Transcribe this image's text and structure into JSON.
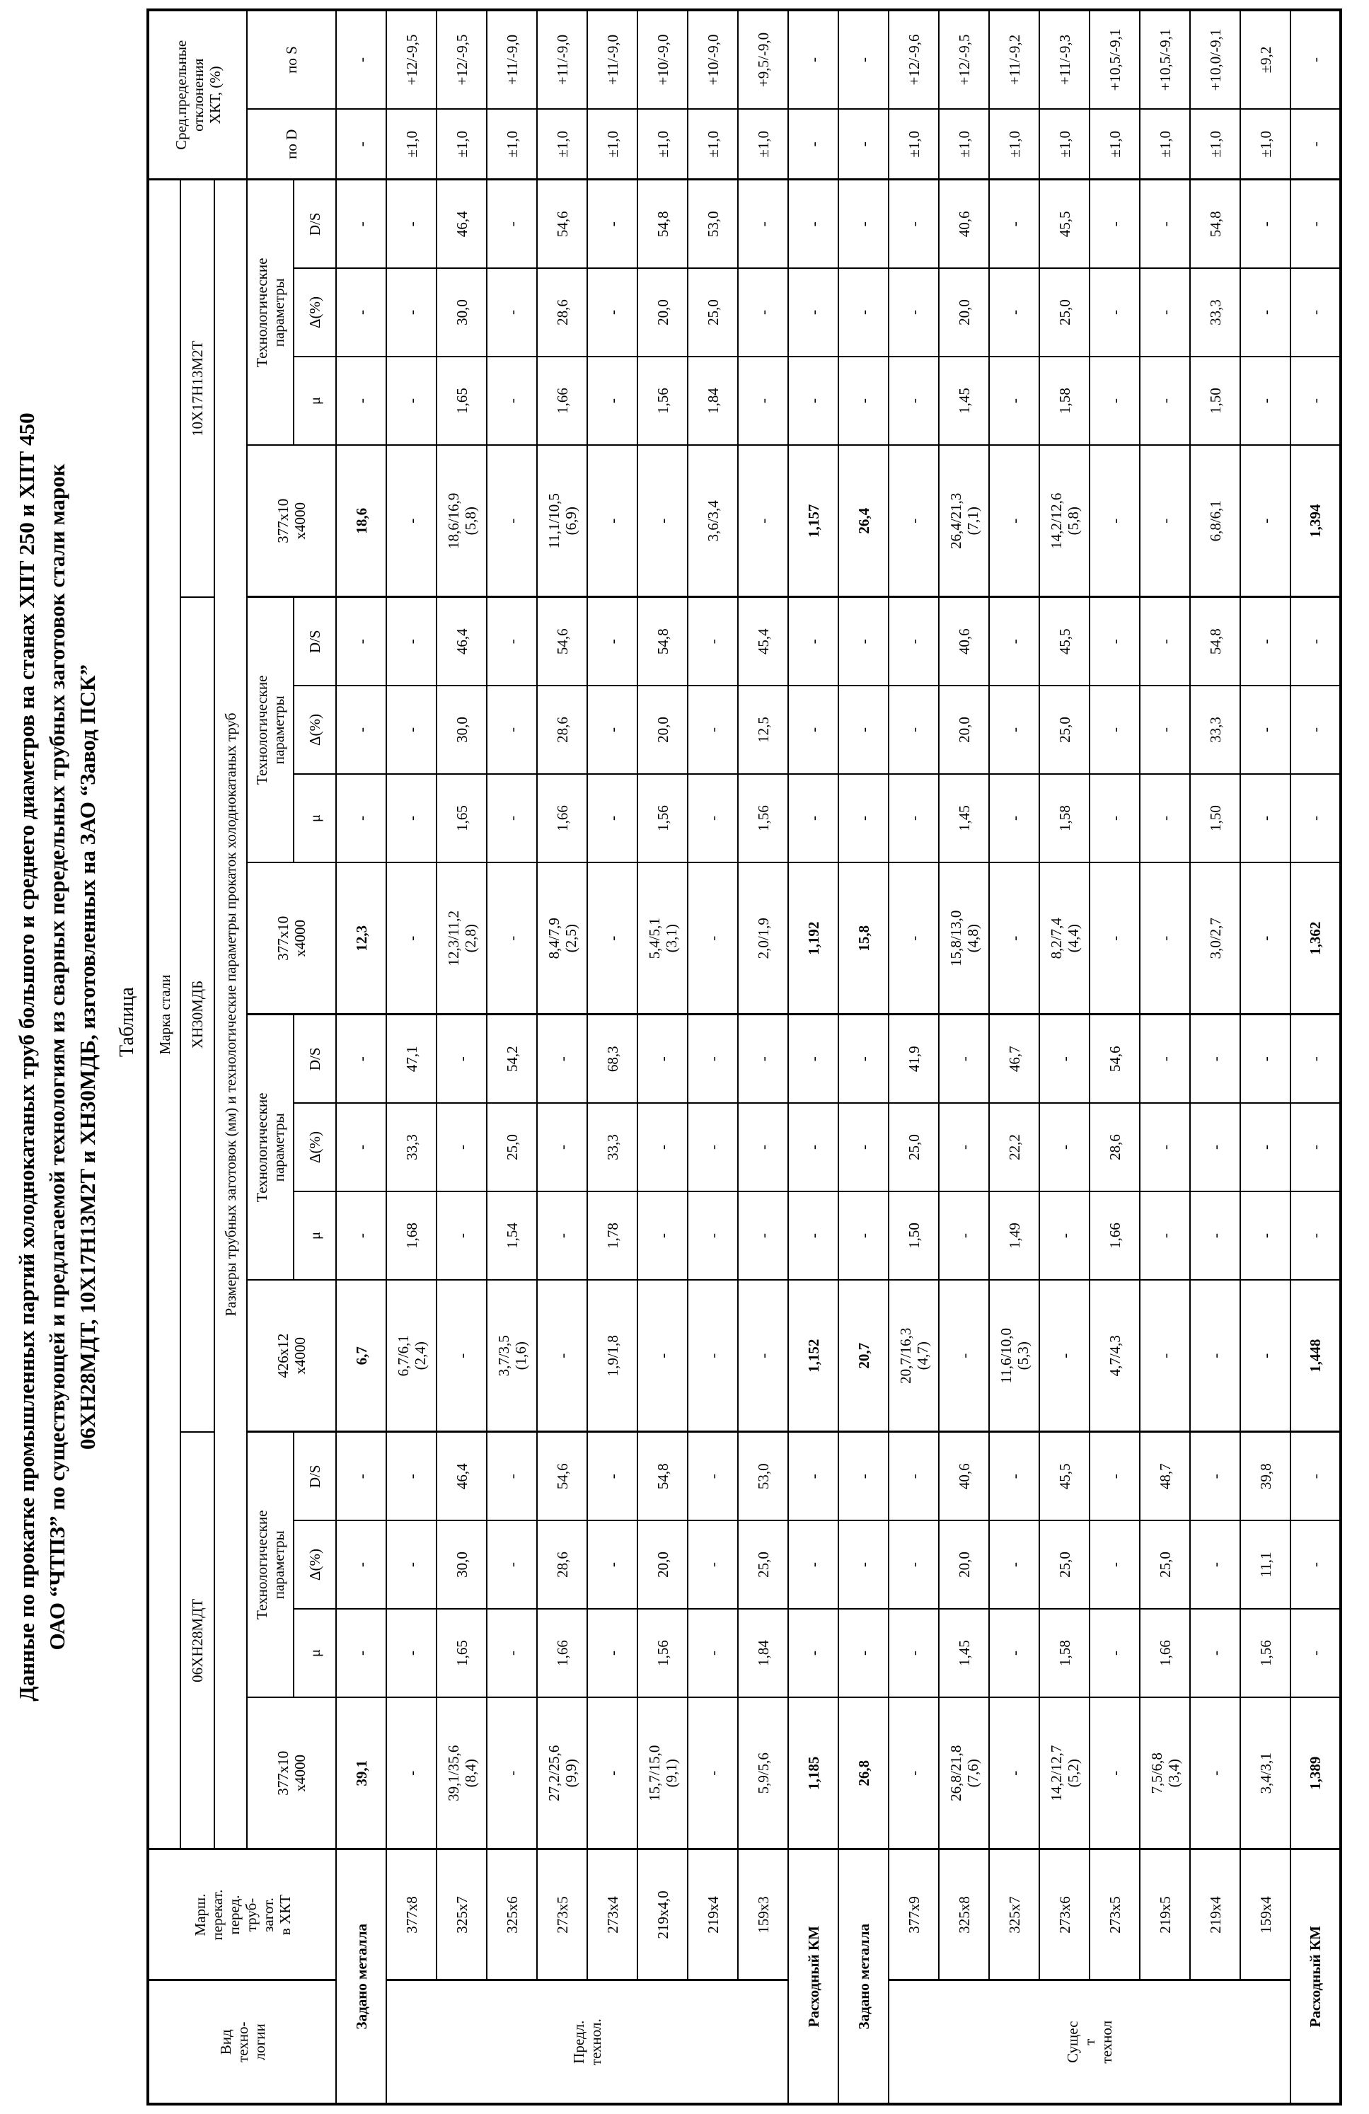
{
  "title_lines": [
    "Данные по прокатке промышленных партий холоднокатаных труб большого и среднего диаметров на станах ХПТ 250 и ХПТ 450",
    "ОАО “ЧТПЗ” по существующей и предлагаемой технологиям из сварных передельных трубных заготовок стали марок",
    "06ХН28МДТ, 10Х17Н13М2Т и ХН30МДБ, изготовленных на ЗАО “Завод ПСК”"
  ],
  "table_label": "Таблица",
  "table": {
    "vid_label": "Вид\nтехно-\nлогии",
    "marsh_label": "Марш.\nперекат.\nперед.\nтруб-\nзагот.\nв ХКТ",
    "marka_stali": "Марка стали",
    "razmery": "Размеры трубных заготовок (мм) и технологические параметры прокаток холоднокатаных труб",
    "otkloneniya": "Сред.предельные\nотклонения\nХКТ, (%)",
    "po_d": "по D",
    "po_s": "по S",
    "tech_params": "Технологические\nпараметры",
    "mu": "μ",
    "delta": "Δ(%)",
    "ds": "D/S",
    "steel_spans": [
      {
        "name": "06ХН28МДТ",
        "cols": 4
      },
      {
        "name": "ХН30МДБ",
        "cols": 8
      },
      {
        "name": "10Х17Н13М2Т",
        "cols": 4
      }
    ],
    "size_headers": [
      "377х10\nх4000",
      "426х12\nх4000",
      "377х10\nх4000",
      "377х10\nх4000"
    ],
    "vid_spans": [
      {
        "text": "Предл.\nтехнол.",
        "from": 1,
        "to": 8
      },
      {
        "text": "Сущес\nт\nтехнол",
        "from": 11,
        "to": 18
      }
    ],
    "rows": [
      {
        "label": "Задано металла",
        "bold": true,
        "g": [
          [
            "39,1",
            "-",
            "-",
            "-"
          ],
          [
            "6,7",
            "-",
            "-",
            "-"
          ],
          [
            "12,3",
            "-",
            "-",
            "-"
          ],
          [
            "18,6",
            "-",
            "-",
            "-"
          ]
        ],
        "d": "-",
        "s": "-"
      },
      {
        "m": "377х8",
        "g": [
          [
            "-",
            "-",
            "-",
            "-"
          ],
          [
            "6,7/6,1\n(2,4)",
            "1,68",
            "33,3",
            "47,1"
          ],
          [
            "-",
            "-",
            "-",
            "-"
          ],
          [
            "-",
            "-",
            "-",
            "-"
          ]
        ],
        "d": "±1,0",
        "s": "+12/-9,5"
      },
      {
        "m": "325х7",
        "g": [
          [
            "39,1/35,6\n(8,4)",
            "1,65",
            "30,0",
            "46,4"
          ],
          [
            "-",
            "-",
            "-",
            "-"
          ],
          [
            "12,3/11,2\n(2,8)",
            "1,65",
            "30,0",
            "46,4"
          ],
          [
            "18,6/16,9\n(5,8)",
            "1,65",
            "30,0",
            "46,4"
          ]
        ],
        "d": "±1,0",
        "s": "+12/-9,5"
      },
      {
        "m": "325х6",
        "g": [
          [
            "-",
            "-",
            "-",
            "-"
          ],
          [
            "3,7/3,5\n(1,6)",
            "1,54",
            "25,0",
            "54,2"
          ],
          [
            "-",
            "-",
            "-",
            "-"
          ],
          [
            "-",
            "-",
            "-",
            "-"
          ]
        ],
        "d": "±1,0",
        "s": "+11/-9,0"
      },
      {
        "m": "273х5",
        "g": [
          [
            "27,2/25,6\n(9,9)",
            "1,66",
            "28,6",
            "54,6"
          ],
          [
            "-",
            "-",
            "-",
            "-"
          ],
          [
            "8,4/7,9\n(2,5)",
            "1,66",
            "28,6",
            "54,6"
          ],
          [
            "11,1/10,5\n(6,9)",
            "1,66",
            "28,6",
            "54,6"
          ]
        ],
        "d": "±1,0",
        "s": "+11/-9,0"
      },
      {
        "m": "273х4",
        "g": [
          [
            "-",
            "-",
            "-",
            "-"
          ],
          [
            "1,9/1,8",
            "1,78",
            "33,3",
            "68,3"
          ],
          [
            "-",
            "-",
            "-",
            "-"
          ],
          [
            "-",
            "-",
            "-",
            "-"
          ]
        ],
        "d": "±1,0",
        "s": "+11/-9,0"
      },
      {
        "m": "219х4,0",
        "g": [
          [
            "15,7/15,0\n(9,1)",
            "1,56",
            "20,0",
            "54,8"
          ],
          [
            "-",
            "-",
            "-",
            "-"
          ],
          [
            "5,4/5,1\n(3,1)",
            "1,56",
            "20,0",
            "54,8"
          ],
          [
            "-",
            "1,56",
            "20,0",
            "54,8"
          ]
        ],
        "d": "±1,0",
        "s": "+10/-9,0"
      },
      {
        "m": "219х4",
        "g": [
          [
            "-",
            "-",
            "-",
            "-"
          ],
          [
            "-",
            "-",
            "-",
            "-"
          ],
          [
            "-",
            "-",
            "-",
            "-"
          ],
          [
            "3,6/3,4",
            "1,84",
            "25,0",
            "53,0"
          ]
        ],
        "d": "±1,0",
        "s": "+10/-9,0"
      },
      {
        "m": "159х3",
        "g": [
          [
            "5,9/5,6",
            "1,84",
            "25,0",
            "53,0"
          ],
          [
            "-",
            "-",
            "-",
            "-"
          ],
          [
            "2,0/1,9",
            "1,56",
            "12,5",
            "45,4"
          ],
          [
            "-",
            "-",
            "-",
            "-"
          ]
        ],
        "d": "±1,0",
        "s": "+9,5/-9,0"
      },
      {
        "label": "Расходный КМ",
        "bold": true,
        "g": [
          [
            "1,185",
            "-",
            "-",
            "-"
          ],
          [
            "1,152",
            "-",
            "-",
            "-"
          ],
          [
            "1,192",
            "-",
            "-",
            "-"
          ],
          [
            "1,157",
            "-",
            "-",
            "-"
          ]
        ],
        "d": "-",
        "s": "-"
      },
      {
        "label": "Задано металла",
        "bold": true,
        "g": [
          [
            "26,8",
            "-",
            "-",
            "-"
          ],
          [
            "20,7",
            "-",
            "-",
            "-"
          ],
          [
            "15,8",
            "-",
            "-",
            "-"
          ],
          [
            "26,4",
            "-",
            "-",
            "-"
          ]
        ],
        "d": "-",
        "s": "-"
      },
      {
        "m": "377х9",
        "g": [
          [
            "-",
            "-",
            "-",
            "-"
          ],
          [
            "20,7/16,3\n(4,7)",
            "1,50",
            "25,0",
            "41,9"
          ],
          [
            "-",
            "-",
            "-",
            "-"
          ],
          [
            "-",
            "-",
            "-",
            "-"
          ]
        ],
        "d": "±1,0",
        "s": "+12/-9,6"
      },
      {
        "m": "325х8",
        "g": [
          [
            "26,8/21,8\n(7,6)",
            "1,45",
            "20,0",
            "40,6"
          ],
          [
            "-",
            "-",
            "-",
            "-"
          ],
          [
            "15,8/13,0\n(4,8)",
            "1,45",
            "20,0",
            "40,6"
          ],
          [
            "26,4/21,3\n(7,1)",
            "1,45",
            "20,0",
            "40,6"
          ]
        ],
        "d": "±1,0",
        "s": "+12/-9,5"
      },
      {
        "m": "325х7",
        "g": [
          [
            "-",
            "-",
            "-",
            "-"
          ],
          [
            "11,6/10,0\n(5,3)",
            "1,49",
            "22,2",
            "46,7"
          ],
          [
            "-",
            "-",
            "-",
            "-"
          ],
          [
            "-",
            "-",
            "-",
            "-"
          ]
        ],
        "d": "±1,0",
        "s": "+11/-9,2"
      },
      {
        "m": "273х6",
        "g": [
          [
            "14,2/12,7\n(5,2)",
            "1,58",
            "25,0",
            "45,5"
          ],
          [
            "-",
            "-",
            "-",
            "-"
          ],
          [
            "8,2/7,4\n(4,4)",
            "1,58",
            "25,0",
            "45,5"
          ],
          [
            "14,2/12,6\n(5,8)",
            "1,58",
            "25,0",
            "45,5"
          ]
        ],
        "d": "±1,0",
        "s": "+11/-9,3"
      },
      {
        "m": "273х5",
        "g": [
          [
            "-",
            "-",
            "-",
            "-"
          ],
          [
            "4,7/4,3",
            "1,66",
            "28,6",
            "54,6"
          ],
          [
            "-",
            "-",
            "-",
            "-"
          ],
          [
            "-",
            "-",
            "-",
            "-"
          ]
        ],
        "d": "±1,0",
        "s": "+10,5/-9,1"
      },
      {
        "m": "219х5",
        "g": [
          [
            "7,5/6,8\n(3,4)",
            "1,66",
            "25,0",
            "48,7"
          ],
          [
            "-",
            "-",
            "-",
            "-"
          ],
          [
            "-",
            "-",
            "-",
            "-"
          ],
          [
            "-",
            "-",
            "-",
            "-"
          ]
        ],
        "d": "±1,0",
        "s": "+10,5/-9,1"
      },
      {
        "m": "219х4",
        "g": [
          [
            "-",
            "-",
            "-",
            "-"
          ],
          [
            "-",
            "-",
            "-",
            "-"
          ],
          [
            "3,0/2,7",
            "1,50",
            "33,3",
            "54,8"
          ],
          [
            "6,8/6,1",
            "1,50",
            "33,3",
            "54,8"
          ]
        ],
        "d": "±1,0",
        "s": "+10,0/-9,1"
      },
      {
        "m": "159х4",
        "g": [
          [
            "3,4/3,1",
            "1,56",
            "11,1",
            "39,8"
          ],
          [
            "-",
            "-",
            "-",
            "-"
          ],
          [
            "-",
            "-",
            "-",
            "-"
          ],
          [
            "-",
            "-",
            "-",
            "-"
          ]
        ],
        "d": "±1,0",
        "s": "±9,2"
      },
      {
        "label": "Расходный КМ",
        "bold": true,
        "g": [
          [
            "1,389",
            "-",
            "-",
            "-"
          ],
          [
            "1,448",
            "-",
            "-",
            "-"
          ],
          [
            "1,362",
            "-",
            "-",
            "-"
          ],
          [
            "1,394",
            "-",
            "-",
            "-"
          ]
        ],
        "d": "-",
        "s": "-"
      }
    ],
    "col_widths": {
      "vid": 175,
      "marsh": 185,
      "size": 215,
      "tech": 125,
      "po_d": 100,
      "po_s": 140
    }
  }
}
